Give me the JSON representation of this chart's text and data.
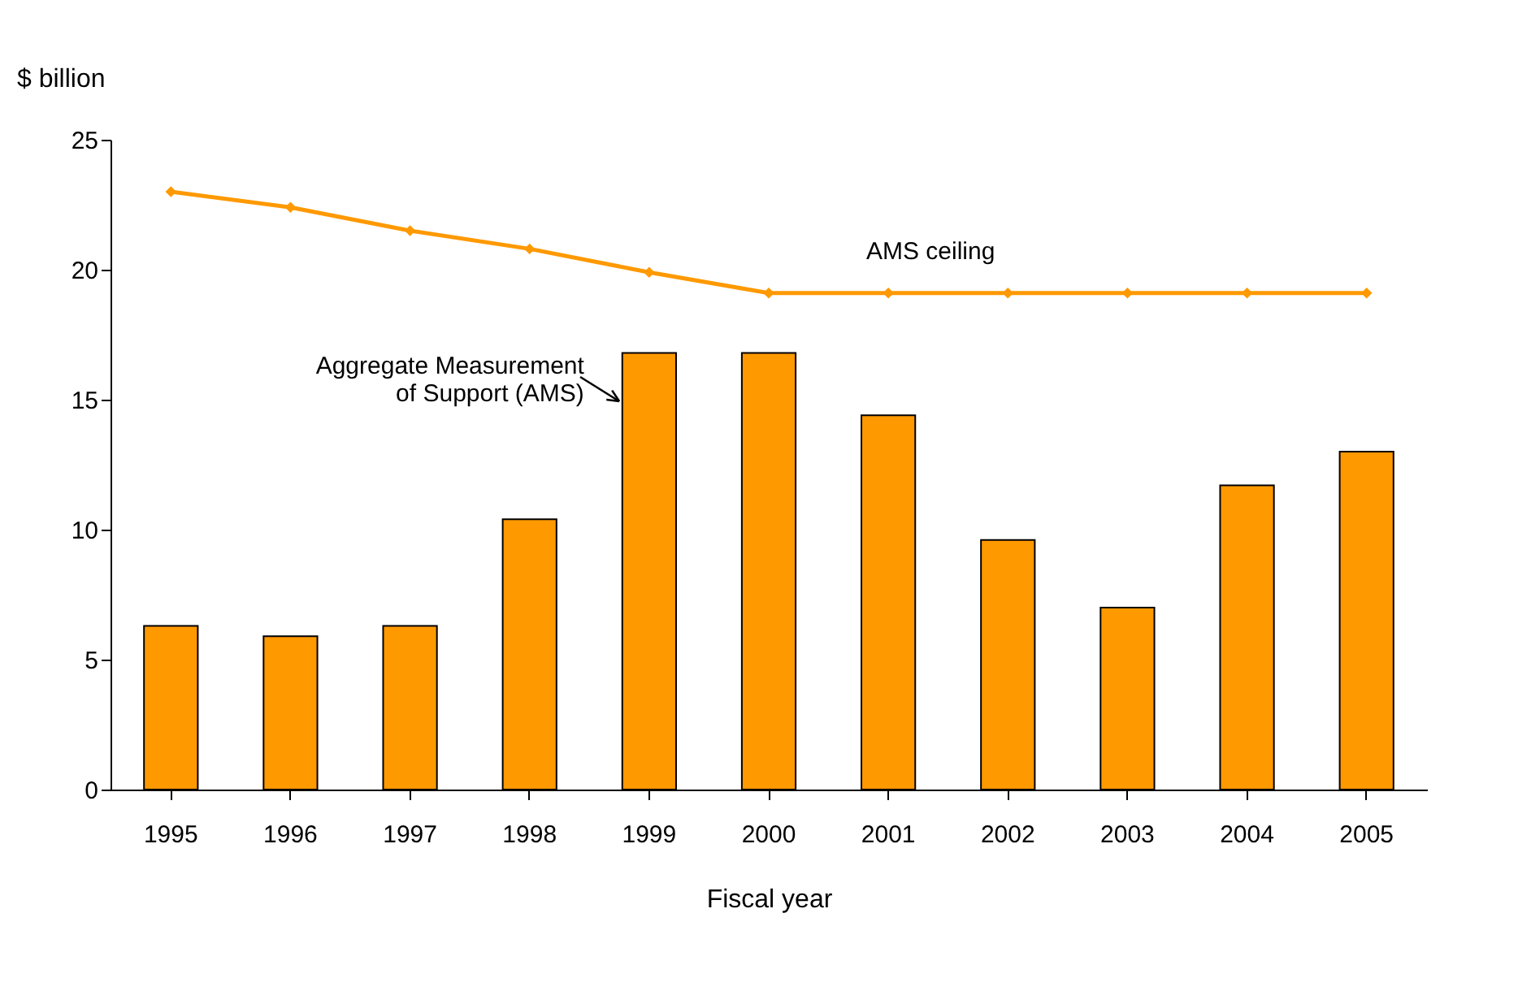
{
  "chart_data": {
    "type": "bar",
    "xlabel": "Fiscal year",
    "ylabel": "$ billion",
    "categories": [
      "1995",
      "1996",
      "1997",
      "1998",
      "1999",
      "2000",
      "2001",
      "2002",
      "2003",
      "2004",
      "2005"
    ],
    "series": [
      {
        "name": "Aggregate Measurement\nof Support (AMS)",
        "color": "#ff9900",
        "values": [
          6.3,
          5.9,
          6.3,
          10.4,
          16.8,
          16.8,
          14.4,
          9.6,
          7.0,
          11.7,
          13.0
        ]
      },
      {
        "name": "AMS ceiling",
        "type": "line",
        "color": "#ff9900",
        "marker": "diamond",
        "values": [
          23.0,
          22.4,
          21.5,
          20.8,
          19.9,
          19.1,
          19.1,
          19.1,
          19.1,
          19.1,
          19.1
        ]
      }
    ],
    "ylim": [
      0,
      25
    ],
    "yticks": [
      0,
      5,
      10,
      15,
      20,
      25
    ],
    "grid": false
  }
}
